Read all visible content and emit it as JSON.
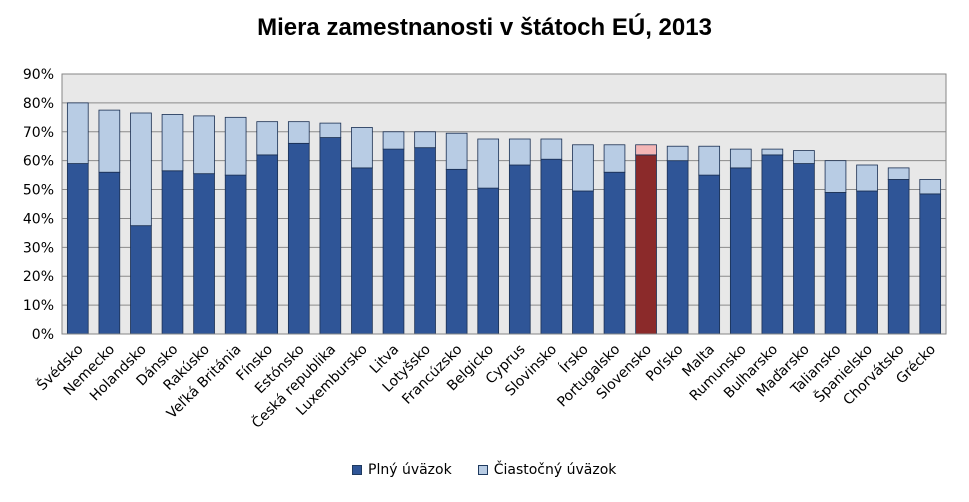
{
  "chart_data": {
    "type": "bar",
    "stacked": true,
    "title": "Miera zamestnanosti v štátoch EÚ, 2013",
    "categories": [
      "Švédsko",
      "Nemecko",
      "Holandsko",
      "Dánsko",
      "Rakúsko",
      "Veľká Británia",
      "Fínsko",
      "Estónsko",
      "Česká republika",
      "Luxembursko",
      "Litva",
      "Lotyšsko",
      "Francúzsko",
      "Belgicko",
      "Cyprus",
      "Slovinsko",
      "Írsko",
      "Portugalsko",
      "Slovensko",
      "Poľsko",
      "Malta",
      "Rumunsko",
      "Bulharsko",
      "Maďarsko",
      "Taliansko",
      "Španielsko",
      "Chorvátsko",
      "Grécko"
    ],
    "series": [
      {
        "name": "Plný úväzok",
        "color": "#2f5597",
        "highlight_color": "#8b2a2a",
        "values": [
          59,
          56,
          37.5,
          56.5,
          55.5,
          55,
          62,
          66,
          68,
          57.5,
          64,
          64.5,
          57,
          50.5,
          58.5,
          60.5,
          49.5,
          56,
          62,
          60,
          55,
          57.5,
          62,
          59,
          49,
          49.5,
          53.5,
          48.5
        ]
      },
      {
        "name": "Čiastočný úväzok",
        "color": "#b8cce4",
        "highlight_color": "#f4b6b6",
        "values": [
          21,
          21.5,
          39,
          19.5,
          20,
          20,
          11.5,
          7.5,
          5,
          14,
          6,
          5.5,
          12.5,
          17,
          9,
          7,
          16,
          9.5,
          3.5,
          5,
          10,
          6.5,
          2,
          4.5,
          11,
          9,
          4,
          5
        ]
      }
    ],
    "highlight_category": "Slovensko",
    "ylim": [
      0,
      90
    ],
    "yticks": [
      "0%",
      "10%",
      "20%",
      "30%",
      "40%",
      "50%",
      "60%",
      "70%",
      "80%",
      "90%"
    ],
    "grid": true,
    "legend": "bottom",
    "plot_background": "#e8e8e8"
  }
}
